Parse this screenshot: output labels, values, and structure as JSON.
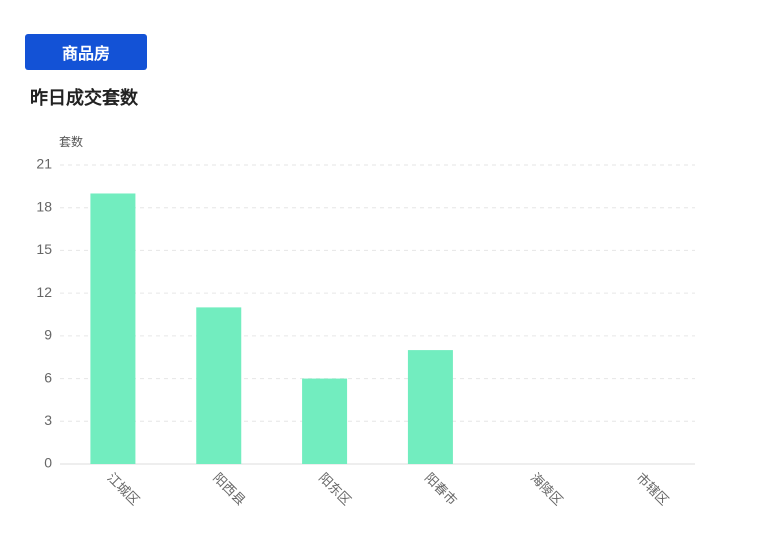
{
  "button": "商品房",
  "chart_data": {
    "type": "bar",
    "title": "昨日成交套数",
    "y_label": "套数",
    "categories": [
      "江城区",
      "阳西县",
      "阳东区",
      "阳春市",
      "海陵区",
      "市辖区"
    ],
    "values": [
      19,
      11,
      6,
      8,
      0,
      0
    ],
    "color": "#72edbf",
    "ylim": [
      0,
      21
    ],
    "yticks": [
      0,
      3,
      6,
      9,
      12,
      15,
      18,
      21
    ],
    "grid": true
  }
}
